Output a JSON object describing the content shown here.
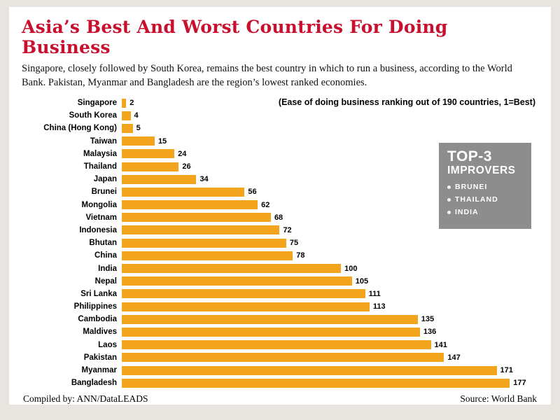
{
  "page": {
    "title": "Asia’s Best And Worst Countries For Doing Business",
    "subtitle": "Singapore, closely followed by South Korea, remains the best country in which to run a business, according to the World Bank. Pakistan, Myanmar and Bangladesh are the region’s lowest ranked economies.",
    "note": "(Ease of doing business ranking out of 190 countries, 1=Best)",
    "footer_left": "Compiled by: ANN/DataLEADS",
    "footer_right": "Source: World Bank"
  },
  "improvers_box": {
    "title_line1": "TOP-3",
    "title_line2": "IMPROVERS",
    "items": [
      "BRUNEI",
      "THAILAND",
      "INDIA"
    ]
  },
  "colors": {
    "bar": "#f2a51c",
    "title_red": "#c8102e",
    "improver_gray": "#8d8d8d",
    "background_frame": "#e8e4e0",
    "panel": "#ffffff"
  },
  "chart_data": {
    "type": "bar",
    "orientation": "horizontal",
    "title": "Asia’s Best And Worst Countries For Doing Business",
    "note": "(Ease of doing business ranking out of 190 countries, 1=Best)",
    "categories": [
      "Singapore",
      "South Korea",
      "China (Hong Kong)",
      "Taiwan",
      "Malaysia",
      "Thailand",
      "Japan",
      "Brunei",
      "Mongolia",
      "Vietnam",
      "Indonesia",
      "Bhutan",
      "China",
      "India",
      "Nepal",
      "Sri Lanka",
      "Philippines",
      "Cambodia",
      "Maldives",
      "Laos",
      "Pakistan",
      "Myanmar",
      "Bangladesh"
    ],
    "values": [
      2,
      4,
      5,
      15,
      24,
      26,
      34,
      56,
      62,
      68,
      72,
      75,
      78,
      100,
      105,
      111,
      113,
      135,
      136,
      141,
      147,
      171,
      177
    ],
    "xlim": [
      0,
      190
    ],
    "value_labels": true,
    "grid": false,
    "legend": false,
    "xlabel": "",
    "ylabel": ""
  }
}
